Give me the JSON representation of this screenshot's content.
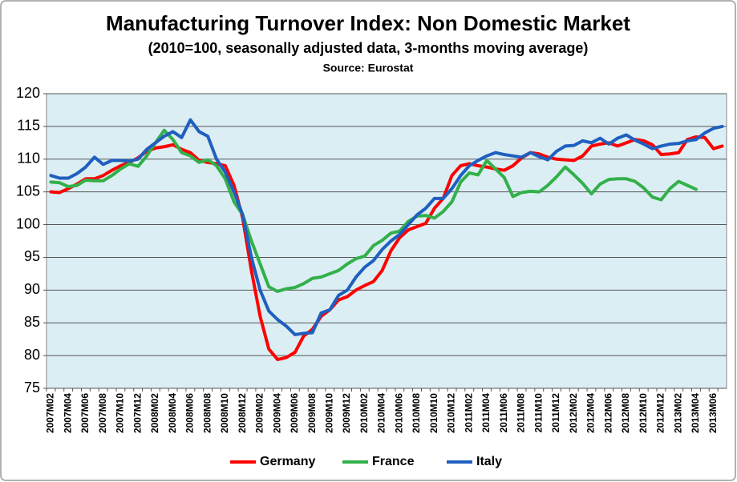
{
  "chart_data": {
    "type": "line",
    "title": "Manufacturing Turnover Index: Non Domestic Market",
    "subtitle": "(2010=100, seasonally adjusted data, 3-months moving average)",
    "source": "Source: Eurostat",
    "categories": [
      "2007M02",
      null,
      "2007M04",
      null,
      "2007M06",
      null,
      "2007M08",
      null,
      "2007M10",
      null,
      "2007M12",
      null,
      "2008M02",
      null,
      "2008M04",
      null,
      "2008M06",
      null,
      "2008M08",
      null,
      "2008M10",
      null,
      "2008M12",
      null,
      "2009M02",
      null,
      "2009M04",
      null,
      "2009M06",
      null,
      "2009M08",
      null,
      "2009M10",
      null,
      "2009M12",
      null,
      "2010M02",
      null,
      "2010M04",
      null,
      "2010M06",
      null,
      "2010M08",
      null,
      "2010M10",
      null,
      "2010M12",
      null,
      "2011M02",
      null,
      "2011M04",
      null,
      "2011M06",
      null,
      "2011M08",
      null,
      "2011M10",
      null,
      "2011M12",
      null,
      "2012M02",
      null,
      "2012M04",
      null,
      "2012M06",
      null,
      "2012M08",
      null,
      "2012M10",
      null,
      "2012M12",
      null,
      "2013M02",
      null,
      "2013M04",
      null,
      "2013M06",
      null
    ],
    "series": [
      {
        "name": "Germany",
        "color": "#ff0000",
        "values": [
          105.0,
          104.9,
          105.5,
          106.2,
          107.0,
          107.0,
          107.5,
          108.3,
          109.0,
          109.5,
          110.2,
          111.2,
          111.7,
          111.9,
          112.2,
          111.5,
          111.0,
          109.8,
          109.5,
          109.3,
          109.0,
          106.0,
          101.0,
          93.0,
          86.0,
          81.0,
          79.4,
          79.7,
          80.5,
          83.0,
          84.0,
          86.0,
          87.0,
          88.5,
          89.0,
          90.0,
          90.7,
          91.3,
          93.0,
          96.0,
          98.0,
          99.2,
          99.7,
          100.2,
          102.5,
          104.0,
          107.5,
          109.0,
          109.3,
          109.0,
          108.8,
          108.5,
          108.3,
          109.0,
          110.2,
          111.0,
          110.8,
          110.3,
          110.0,
          109.9,
          109.8,
          110.5,
          112.0,
          112.3,
          112.5,
          112.0,
          112.5,
          113.0,
          112.8,
          112.2,
          110.7,
          110.8,
          111.0,
          113.0,
          113.4,
          113.3,
          111.6,
          112.0
        ]
      },
      {
        "name": "France",
        "color": "#33b04a",
        "values": [
          106.5,
          106.4,
          105.8,
          106.0,
          106.8,
          106.7,
          106.7,
          107.5,
          108.5,
          109.3,
          108.9,
          110.5,
          112.5,
          114.4,
          113.0,
          111.0,
          110.5,
          109.5,
          109.9,
          109.0,
          107.0,
          103.5,
          101.5,
          97.5,
          94.0,
          90.5,
          89.8,
          90.2,
          90.4,
          91.0,
          91.8,
          92.0,
          92.5,
          93.0,
          94.0,
          94.8,
          95.2,
          96.8,
          97.6,
          98.7,
          99.0,
          100.5,
          101.3,
          101.4,
          101.0,
          102.0,
          103.5,
          106.5,
          107.9,
          107.6,
          109.8,
          108.5,
          107.2,
          104.3,
          104.9,
          105.1,
          105.0,
          106.0,
          107.3,
          108.8,
          107.6,
          106.3,
          104.7,
          106.2,
          106.9,
          107.0,
          107.0,
          106.6,
          105.6,
          104.2,
          103.8,
          105.5,
          106.6,
          106.0,
          105.4,
          null,
          null,
          null
        ]
      },
      {
        "name": "Italy",
        "color": "#1f5fbf",
        "values": [
          107.5,
          107.1,
          107.1,
          107.8,
          108.8,
          110.3,
          109.2,
          109.8,
          109.8,
          109.7,
          110.0,
          111.5,
          112.5,
          113.5,
          114.2,
          113.3,
          116.0,
          114.2,
          113.5,
          110.0,
          108.0,
          105.0,
          101.5,
          95.0,
          90.0,
          86.8,
          85.5,
          84.5,
          83.2,
          83.4,
          83.5,
          86.5,
          87.0,
          89.2,
          90.0,
          92.0,
          93.5,
          94.5,
          96.2,
          97.5,
          98.5,
          100.0,
          101.5,
          102.5,
          104.0,
          104.0,
          105.5,
          107.5,
          109.0,
          109.8,
          110.5,
          111.0,
          110.7,
          110.5,
          110.3,
          111.0,
          110.4,
          109.9,
          111.2,
          112.0,
          112.1,
          112.8,
          112.5,
          113.2,
          112.3,
          113.2,
          113.7,
          112.9,
          112.3,
          111.6,
          112.0,
          112.3,
          112.4,
          112.8,
          113.0,
          114.0,
          114.7,
          115.0
        ]
      }
    ],
    "ylim": [
      75,
      120
    ],
    "yticks": [
      75,
      80,
      85,
      90,
      95,
      100,
      105,
      110,
      115,
      120
    ],
    "grid": true,
    "legend": "bottom"
  }
}
